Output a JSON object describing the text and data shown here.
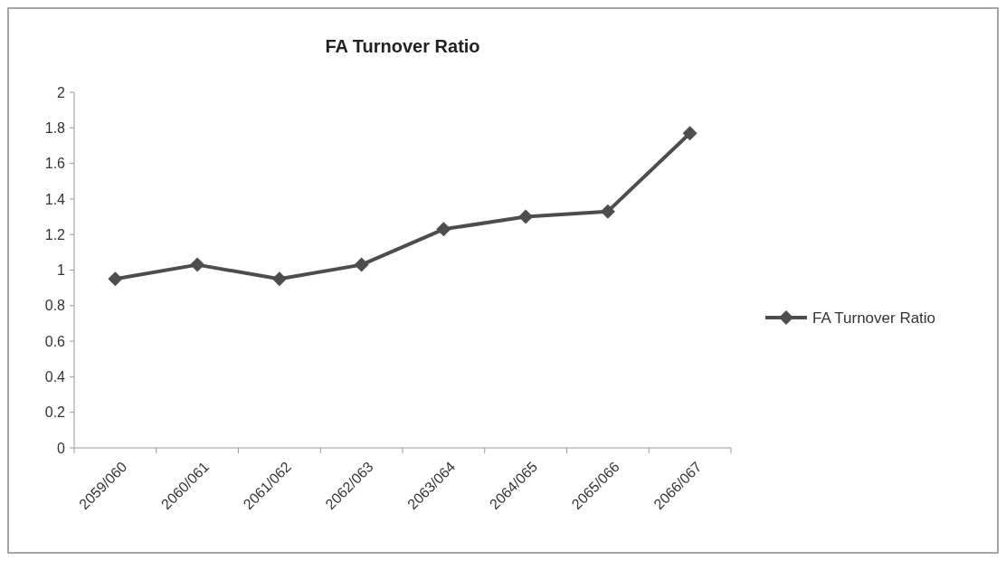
{
  "chart_data": {
    "type": "line",
    "title": "FA Turnover Ratio",
    "categories": [
      "2059/060",
      "2060/061",
      "2061/062",
      "2062/063",
      "2063/064",
      "2064/065",
      "2065/066",
      "2066/067"
    ],
    "series": [
      {
        "name": "FA Turnover Ratio",
        "color": "#4d4d4d",
        "values": [
          0.95,
          1.03,
          0.95,
          1.03,
          1.23,
          1.3,
          1.33,
          1.77
        ]
      }
    ],
    "ylim": [
      0,
      2
    ],
    "yticks": [
      0,
      0.2,
      0.4,
      0.6,
      0.8,
      1,
      1.2,
      1.4,
      1.6,
      1.8,
      2
    ],
    "grid": false,
    "legend": "right",
    "marker": "diamond",
    "line_style": "solid"
  }
}
